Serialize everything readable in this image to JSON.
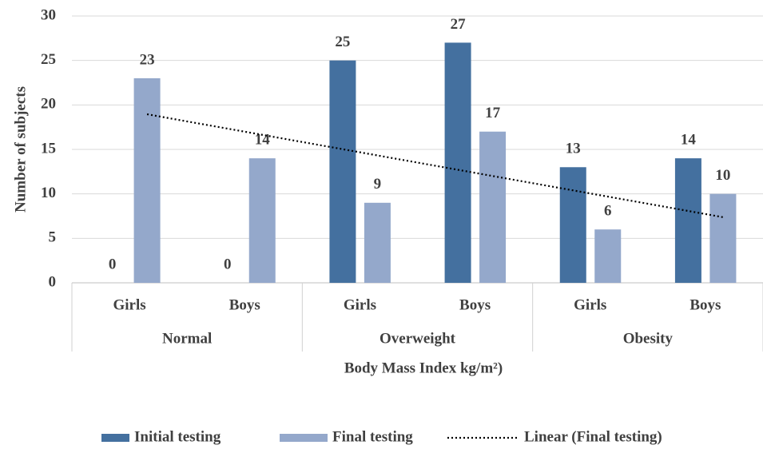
{
  "chart_data": {
    "type": "bar",
    "x_label": "Body Mass Index kg/m²)",
    "y_label": "Number of subjects",
    "categories": [
      "Girls",
      "Boys",
      "Girls",
      "Boys",
      "Girls",
      "Boys"
    ],
    "groups": [
      "Normal",
      "Overweight",
      "Obesity"
    ],
    "series": [
      {
        "name": "Initial testing",
        "color": "#44709f",
        "values": [
          0,
          0,
          25,
          27,
          13,
          14
        ]
      },
      {
        "name": "Final testing",
        "color": "#94a8cb",
        "values": [
          23,
          14,
          9,
          17,
          6,
          10
        ]
      }
    ],
    "trendline": {
      "type": "linear",
      "series": 1,
      "name": "Linear (Final testing)",
      "color": "#000000"
    },
    "ylim": [
      0,
      30
    ],
    "yticks": [
      0,
      5,
      10,
      15,
      20,
      25,
      30
    ],
    "grid": true,
    "legend": "bottom"
  }
}
